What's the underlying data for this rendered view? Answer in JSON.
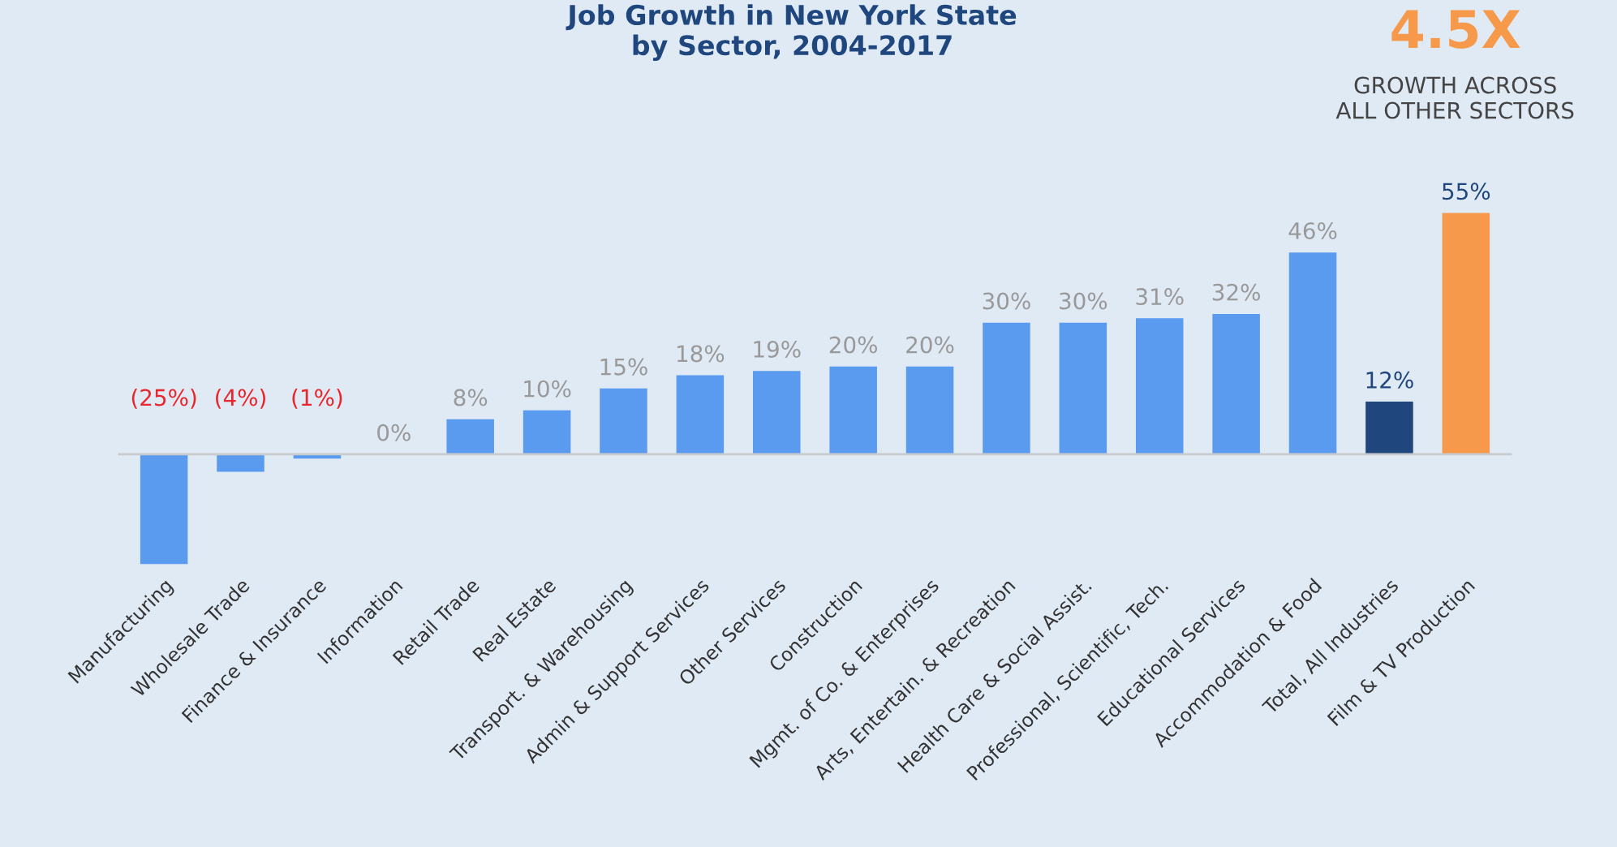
{
  "chart_data": {
    "type": "bar",
    "title": "Job Growth in New York State\nby Sector, 2004-2017",
    "categories": [
      "Manufacturing",
      "Wholesale Trade",
      "Finance & Insurance",
      "Information",
      "Retail Trade",
      "Real Estate",
      "Transport. & Warehousing",
      "Admin & Support Services",
      "Other Services",
      "Construction",
      "Mgmt. of Co. & Enterprises",
      "Arts, Entertain. & Recreation",
      "Health Care & Social Assist.",
      "Professional, Scientific, Tech.",
      "Educational Services",
      "Accommodation & Food",
      "Total, All Industries",
      "Film & TV Production"
    ],
    "values": [
      -25,
      -4,
      -1,
      0,
      8,
      10,
      15,
      18,
      19,
      20,
      20,
      30,
      30,
      31,
      32,
      46,
      12,
      55
    ],
    "value_labels": [
      "(25%)",
      "(4%)",
      "(1%)",
      "0%",
      "8%",
      "10%",
      "15%",
      "18%",
      "19%",
      "20%",
      "20%",
      "30%",
      "30%",
      "31%",
      "32%",
      "46%",
      "12%",
      "55%"
    ],
    "colors": [
      "#5b9bef",
      "#5b9bef",
      "#5b9bef",
      "#5b9bef",
      "#5b9bef",
      "#5b9bef",
      "#5b9bef",
      "#5b9bef",
      "#5b9bef",
      "#5b9bef",
      "#5b9bef",
      "#5b9bef",
      "#5b9bef",
      "#5b9bef",
      "#5b9bef",
      "#5b9bef",
      "#1f477d",
      "#f7994a"
    ],
    "annotations": [
      "4.5X",
      "GROWTH ACROSS\nALL OTHER SECTORS"
    ],
    "grid": false
  }
}
